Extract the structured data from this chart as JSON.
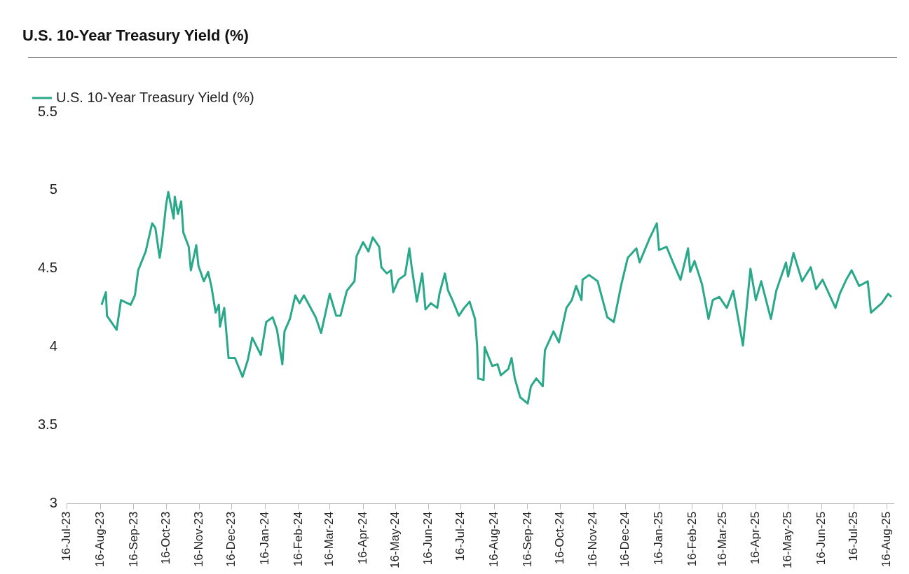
{
  "chart_data": {
    "type": "line",
    "title": "U.S. 10-Year Treasury Yield (%)",
    "xlim": [
      "2023-07-16",
      "2025-08-22"
    ],
    "xticks": [
      {
        "value": "2023-07-16",
        "label": "16-Jul-23"
      },
      {
        "value": "2023-08-16",
        "label": "16-Aug-23"
      },
      {
        "value": "2023-09-16",
        "label": "16-Sep-23"
      },
      {
        "value": "2023-10-16",
        "label": "16-Oct-23"
      },
      {
        "value": "2023-11-16",
        "label": "16-Nov-23"
      },
      {
        "value": "2023-12-16",
        "label": "16-Dec-23"
      },
      {
        "value": "2024-01-16",
        "label": "16-Jan-24"
      },
      {
        "value": "2024-02-16",
        "label": "16-Feb-24"
      },
      {
        "value": "2024-03-16",
        "label": "16-Mar-24"
      },
      {
        "value": "2024-04-16",
        "label": "16-Apr-24"
      },
      {
        "value": "2024-05-16",
        "label": "16-May-24"
      },
      {
        "value": "2024-06-16",
        "label": "16-Jun-24"
      },
      {
        "value": "2024-07-16",
        "label": "16-Jul-24"
      },
      {
        "value": "2024-08-16",
        "label": "16-Aug-24"
      },
      {
        "value": "2024-09-16",
        "label": "16-Sep-24"
      },
      {
        "value": "2024-10-16",
        "label": "16-Oct-24"
      },
      {
        "value": "2024-11-16",
        "label": "16-Nov-24"
      },
      {
        "value": "2024-12-16",
        "label": "16-Dec-24"
      },
      {
        "value": "2025-01-16",
        "label": "16-Jan-25"
      },
      {
        "value": "2025-02-16",
        "label": "16-Feb-25"
      },
      {
        "value": "2025-03-16",
        "label": "16-Mar-25"
      },
      {
        "value": "2025-04-16",
        "label": "16-Apr-25"
      },
      {
        "value": "2025-05-16",
        "label": "16-May-25"
      },
      {
        "value": "2025-06-16",
        "label": "16-Jun-25"
      },
      {
        "value": "2025-07-16",
        "label": "16-Jul-25"
      },
      {
        "value": "2025-08-16",
        "label": "16-Aug-25"
      }
    ],
    "ylim": [
      3,
      5.5
    ],
    "yticks": [
      3,
      3.5,
      4,
      4.5,
      5,
      5.5
    ],
    "grid": false,
    "legend": "top left",
    "marker": "none",
    "line_style": "solid",
    "x": [
      "2023-08-17",
      "2023-08-21",
      "2023-08-22",
      "2023-08-31",
      "2023-09-04",
      "2023-09-13",
      "2023-09-17",
      "2023-09-20",
      "2023-09-27",
      "2023-10-03",
      "2023-10-06",
      "2023-10-10",
      "2023-10-12",
      "2023-10-16",
      "2023-10-18",
      "2023-10-23",
      "2023-10-24",
      "2023-10-27",
      "2023-10-30",
      "2023-11-01",
      "2023-11-06",
      "2023-11-08",
      "2023-11-13",
      "2023-11-15",
      "2023-11-20",
      "2023-11-24",
      "2023-11-27",
      "2023-12-01",
      "2023-12-04",
      "2023-12-05",
      "2023-12-09",
      "2023-12-13",
      "2023-12-19",
      "2023-12-26",
      "2023-12-31",
      "2024-01-04",
      "2024-01-12",
      "2024-01-17",
      "2024-01-23",
      "2024-01-27",
      "2024-02-01",
      "2024-02-03",
      "2024-02-08",
      "2024-02-13",
      "2024-02-17",
      "2024-02-21",
      "2024-03-03",
      "2024-03-08",
      "2024-03-16",
      "2024-03-22",
      "2024-03-26",
      "2024-04-01",
      "2024-04-08",
      "2024-04-10",
      "2024-04-16",
      "2024-04-21",
      "2024-04-25",
      "2024-05-01",
      "2024-05-03",
      "2024-05-08",
      "2024-05-12",
      "2024-05-14",
      "2024-05-19",
      "2024-05-25",
      "2024-05-29",
      "2024-05-31",
      "2024-06-05",
      "2024-06-10",
      "2024-06-13",
      "2024-06-18",
      "2024-06-24",
      "2024-06-26",
      "2024-07-01",
      "2024-07-04",
      "2024-07-08",
      "2024-07-14",
      "2024-07-19",
      "2024-07-24",
      "2024-07-29",
      "2024-07-31",
      "2024-08-01",
      "2024-08-06",
      "2024-08-07",
      "2024-08-14",
      "2024-08-19",
      "2024-08-22",
      "2024-08-29",
      "2024-09-01",
      "2024-09-04",
      "2024-09-09",
      "2024-09-16",
      "2024-09-19",
      "2024-09-24",
      "2024-09-30",
      "2024-10-02",
      "2024-10-10",
      "2024-10-15",
      "2024-10-22",
      "2024-10-27",
      "2024-10-31",
      "2024-11-05",
      "2024-11-06",
      "2024-11-12",
      "2024-11-20",
      "2024-11-29",
      "2024-12-05",
      "2024-12-12",
      "2024-12-18",
      "2024-12-26",
      "2024-12-29",
      "2025-01-07",
      "2025-01-14",
      "2025-01-16",
      "2025-01-23",
      "2025-01-29",
      "2025-02-05",
      "2025-02-12",
      "2025-02-14",
      "2025-02-18",
      "2025-02-25",
      "2025-03-03",
      "2025-03-07",
      "2025-03-13",
      "2025-03-20",
      "2025-03-26",
      "2025-04-04",
      "2025-04-11",
      "2025-04-16",
      "2025-04-21",
      "2025-04-30",
      "2025-05-05",
      "2025-05-14",
      "2025-05-16",
      "2025-05-21",
      "2025-05-29",
      "2025-06-06",
      "2025-06-11",
      "2025-06-17",
      "2025-06-29",
      "2025-07-03",
      "2025-07-09",
      "2025-07-14",
      "2025-07-21",
      "2025-07-29",
      "2025-08-01",
      "2025-08-11",
      "2025-08-17",
      "2025-08-20"
    ],
    "series": [
      {
        "name": "U.S. 10-Year Treasury Yield (%)",
        "color": "#2aa88a",
        "values": [
          4.27,
          4.35,
          4.2,
          4.11,
          4.3,
          4.27,
          4.33,
          4.49,
          4.61,
          4.79,
          4.76,
          4.57,
          4.66,
          4.91,
          4.99,
          4.82,
          4.96,
          4.85,
          4.93,
          4.73,
          4.64,
          4.49,
          4.65,
          4.52,
          4.42,
          4.48,
          4.39,
          4.22,
          4.27,
          4.13,
          4.25,
          3.93,
          3.93,
          3.81,
          3.92,
          4.06,
          3.95,
          4.16,
          4.19,
          4.11,
          3.89,
          4.1,
          4.18,
          4.33,
          4.28,
          4.33,
          4.19,
          4.09,
          4.34,
          4.2,
          4.2,
          4.36,
          4.42,
          4.58,
          4.67,
          4.61,
          4.7,
          4.64,
          4.51,
          4.47,
          4.49,
          4.35,
          4.43,
          4.46,
          4.63,
          4.52,
          4.29,
          4.47,
          4.24,
          4.28,
          4.25,
          4.34,
          4.47,
          4.36,
          4.3,
          4.2,
          4.25,
          4.29,
          4.18,
          4.01,
          3.8,
          3.79,
          4.0,
          3.88,
          3.89,
          3.82,
          3.86,
          3.93,
          3.8,
          3.68,
          3.64,
          3.75,
          3.8,
          3.75,
          3.98,
          4.1,
          4.03,
          4.25,
          4.3,
          4.39,
          4.3,
          4.43,
          4.46,
          4.42,
          4.19,
          4.16,
          4.4,
          4.57,
          4.63,
          4.54,
          4.69,
          4.79,
          4.62,
          4.64,
          4.54,
          4.43,
          4.63,
          4.48,
          4.55,
          4.4,
          4.18,
          4.3,
          4.32,
          4.25,
          4.36,
          4.01,
          4.5,
          4.3,
          4.42,
          4.18,
          4.36,
          4.54,
          4.45,
          4.6,
          4.42,
          4.51,
          4.37,
          4.43,
          4.25,
          4.34,
          4.43,
          4.49,
          4.39,
          4.42,
          4.22,
          4.28,
          4.34,
          4.32
        ]
      }
    ]
  }
}
